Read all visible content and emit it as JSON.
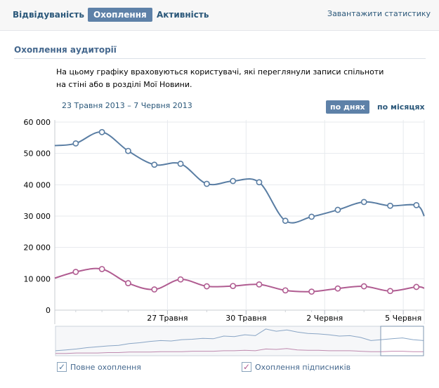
{
  "tabs": [
    {
      "label": "Відвідуваність",
      "active": false
    },
    {
      "label": "Охоплення",
      "active": true
    },
    {
      "label": "Активність",
      "active": false
    }
  ],
  "download_link": "Завантажити статистику",
  "section_title": "Охоплення аудиторії",
  "description": "На цьому графіку враховуються користувачі, які переглянули записи спільноти на стіні або в розділі Мої Новини.",
  "date_range": "23 Травня 2013 – 7 Червня 2013",
  "period": {
    "by_days": "по днях",
    "by_months": "по місяцях",
    "selected": "by_days"
  },
  "legend": [
    {
      "label": "Повне охоплення",
      "checked": true,
      "color": "#597da3",
      "mark": "✓"
    },
    {
      "label": "Охоплення підписників",
      "checked": true,
      "color": "#b05c91",
      "mark": "✓"
    }
  ],
  "chart_data": {
    "type": "line",
    "title": "Охоплення аудиторії",
    "xlabel": "",
    "ylabel": "",
    "x_ticks": [
      "27 Травня",
      "30 Травня",
      "2 Червня",
      "5 Червня"
    ],
    "y_ticks": [
      "0",
      "10 000",
      "20 000",
      "30 000",
      "40 000",
      "50 000",
      "60 000"
    ],
    "ylim": [
      0,
      60000
    ],
    "grid": true,
    "x_index_range": [
      -0.8,
      13.3
    ],
    "x_tick_positions": [
      3.5,
      6.5,
      9.5,
      12.5
    ],
    "series": [
      {
        "name": "Повне охоплення",
        "color": "#597da3",
        "values": [
          53200,
          56800,
          50800,
          46400,
          46700,
          40300,
          41200,
          40800,
          28500,
          29800,
          32000,
          34500,
          33300,
          33500
        ]
      },
      {
        "name": "Охоплення підписників",
        "color": "#b05c91",
        "values": [
          12200,
          13100,
          8600,
          6600,
          9800,
          7600,
          7700,
          8200,
          6300,
          5900,
          6900,
          7600,
          6100,
          7400
        ]
      }
    ],
    "left_edge_values": [
      52500,
      10200
    ],
    "right_edge_values": [
      30000,
      7000
    ],
    "overview": {
      "full": [
        8,
        10,
        12,
        15,
        17,
        19,
        20,
        24,
        26,
        29,
        31,
        30,
        33,
        34,
        36,
        35,
        41,
        40,
        44,
        42,
        57,
        52,
        55,
        50,
        47,
        46,
        44,
        41,
        42,
        38,
        31,
        33,
        35,
        37,
        33,
        31
      ],
      "subscribers": [
        2,
        2,
        3,
        3,
        3,
        4,
        4,
        5,
        5,
        5,
        6,
        6,
        6,
        7,
        7,
        7,
        8,
        8,
        9,
        8,
        12,
        11,
        13,
        10,
        9,
        9,
        8,
        8,
        8,
        7,
        6,
        6,
        7,
        7,
        6,
        6
      ]
    }
  }
}
